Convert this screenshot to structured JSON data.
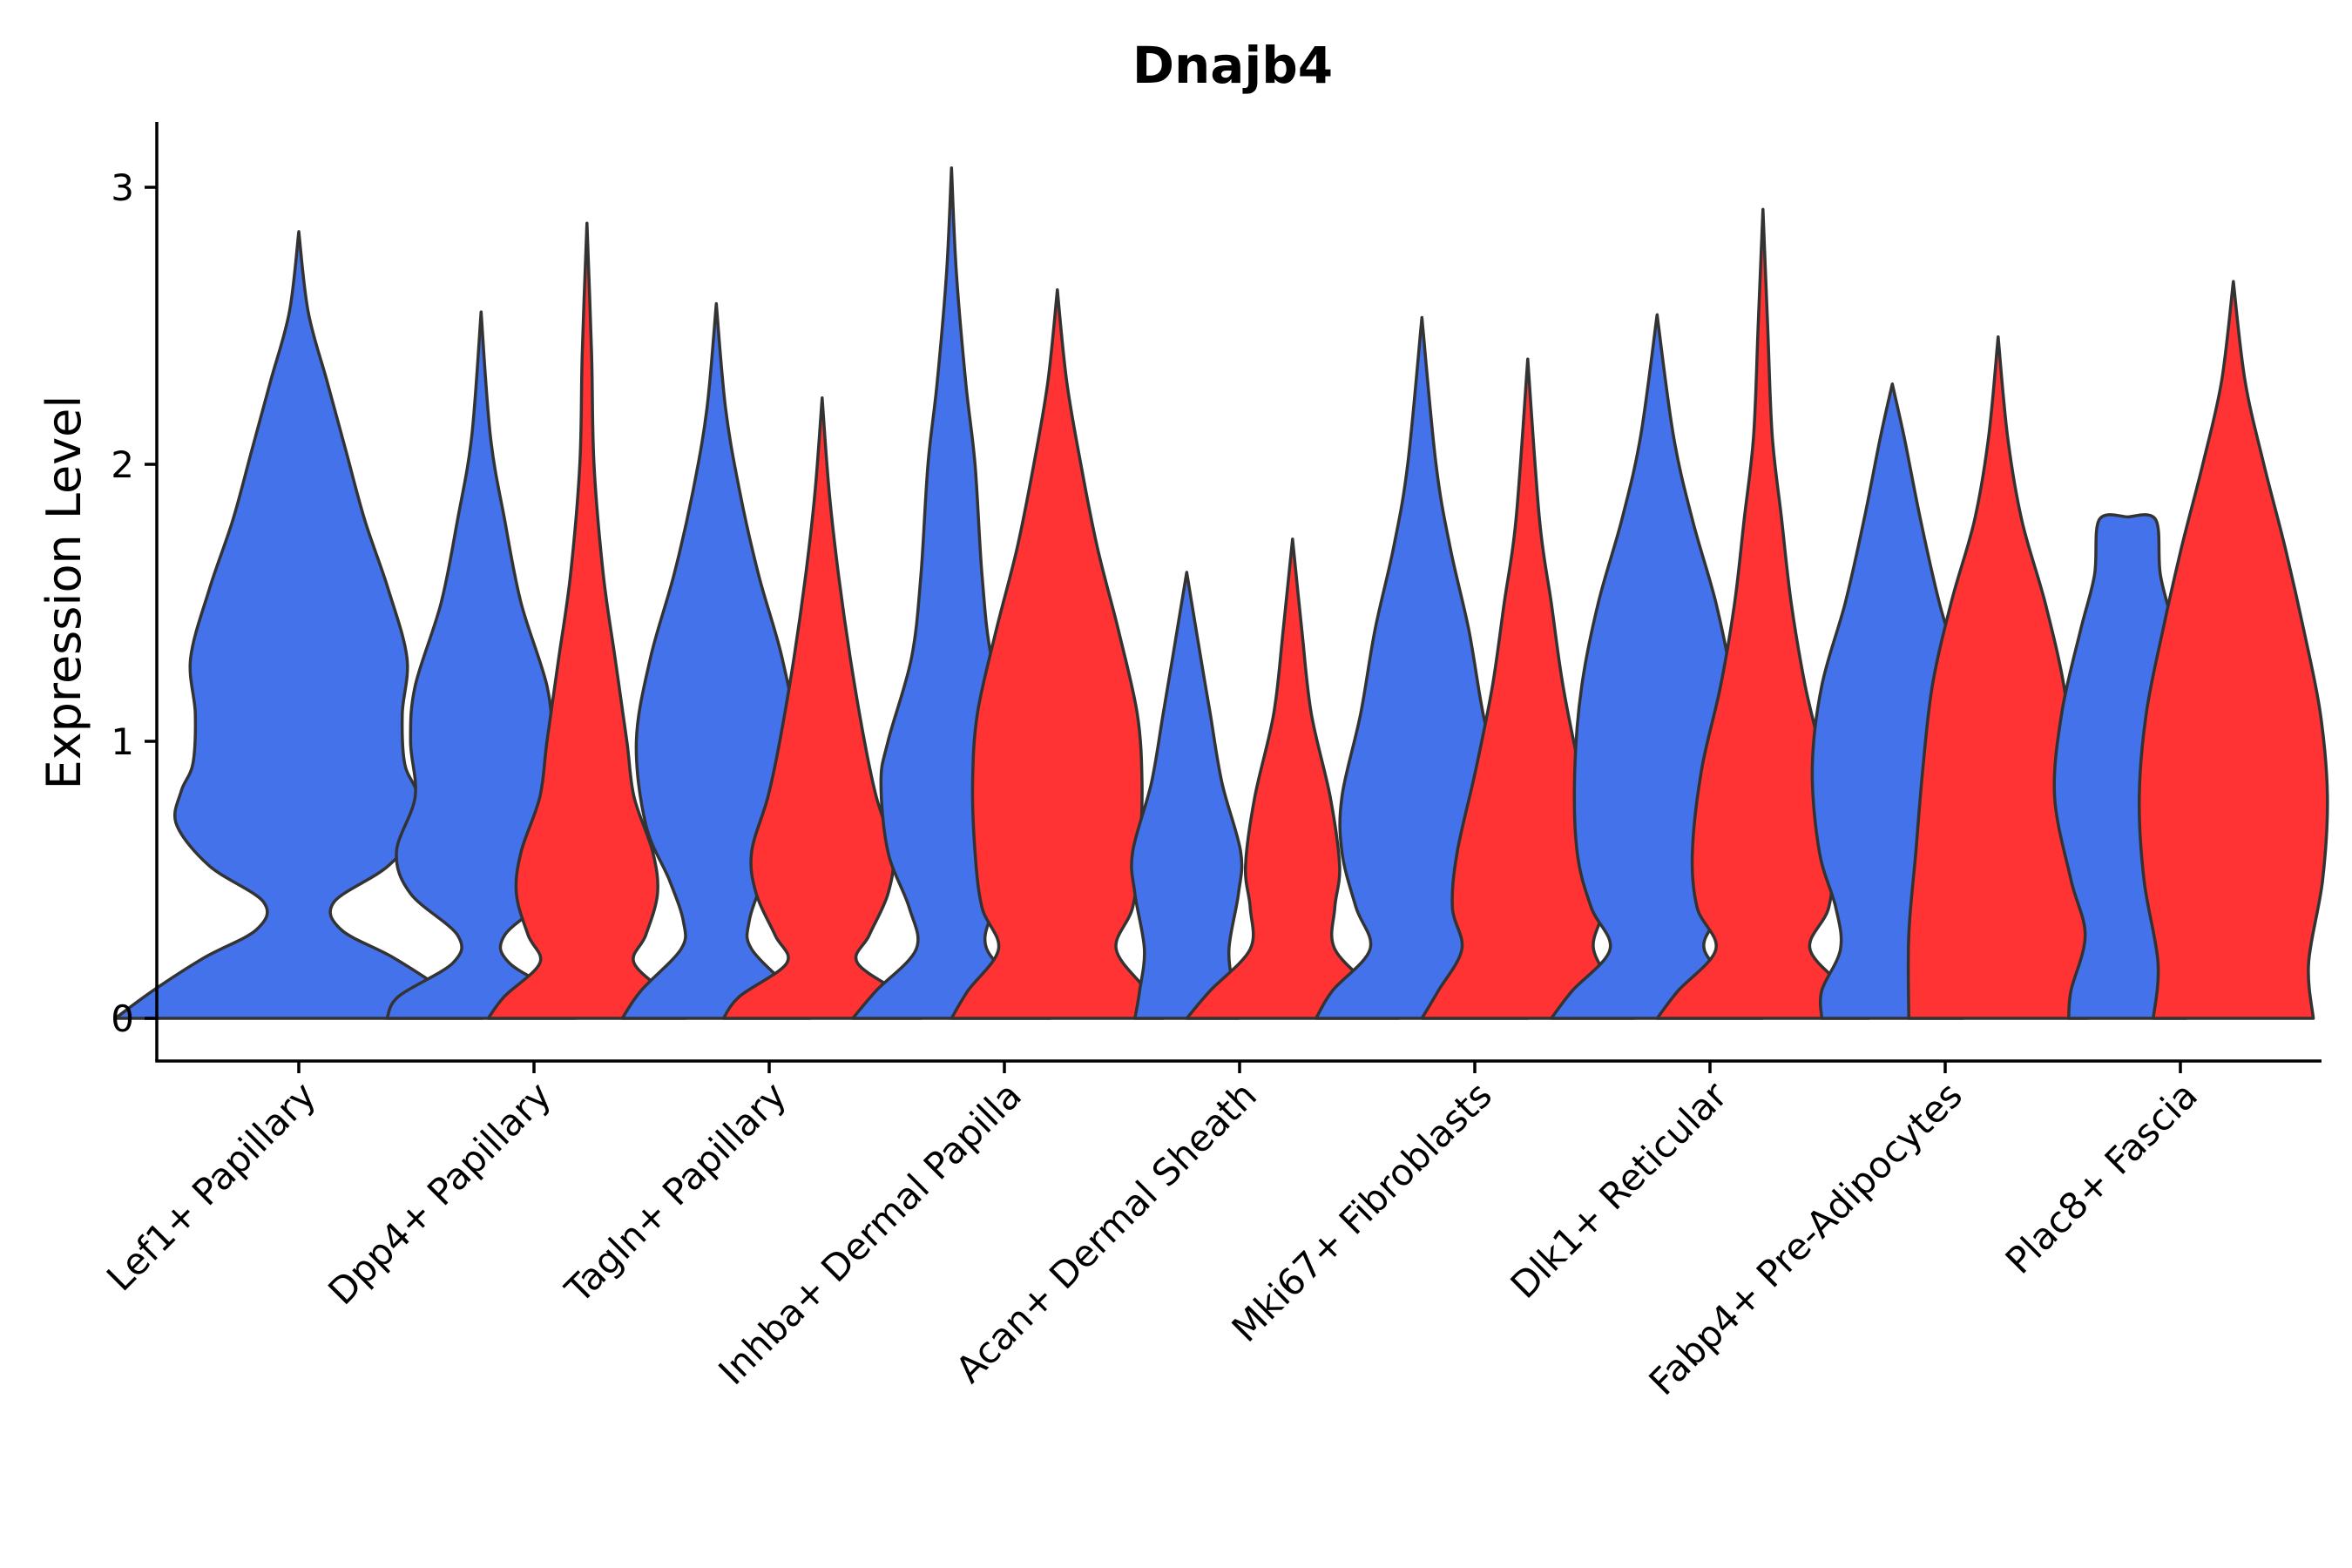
{
  "chart_data": {
    "type": "violin",
    "title": "Dnajb4",
    "xlabel": "",
    "ylabel": "Expression Level",
    "ylim": [
      -0.15,
      3.22
    ],
    "yticks": [
      0,
      1,
      2,
      3
    ],
    "colors": {
      "group1": "#4472EA",
      "group2": "#FF3333",
      "outline": "#333333"
    },
    "categories": [
      "Lef1+ Papillary",
      "Dpp4+ Papillary",
      "Tagln+ Papillary",
      "Inhba+ Dermal Papilla",
      "Acan+ Dermal Sheath",
      "Mki67+ Fibroblasts",
      "Dlk1+ Reticular",
      "Fabp4+ Pre-Adipocytes",
      "Plac8+ Fascia"
    ],
    "violins": [
      {
        "category": 0,
        "group": "group1",
        "offset": 0.0,
        "max": 2.84,
        "profile": [
          [
            0,
            0.78
          ],
          [
            0.1,
            0.62
          ],
          [
            0.22,
            0.4
          ],
          [
            0.32,
            0.18
          ],
          [
            0.42,
            0.15
          ],
          [
            0.55,
            0.38
          ],
          [
            0.7,
            0.52
          ],
          [
            0.82,
            0.5
          ],
          [
            0.92,
            0.45
          ],
          [
            1.1,
            0.44
          ],
          [
            1.3,
            0.46
          ],
          [
            1.55,
            0.38
          ],
          [
            1.8,
            0.28
          ],
          [
            2.05,
            0.2
          ],
          [
            2.3,
            0.12
          ],
          [
            2.55,
            0.04
          ],
          [
            2.84,
            0.0
          ]
        ]
      },
      {
        "category": 1,
        "group": "group1",
        "offset": -0.225,
        "max": 2.55,
        "profile": [
          [
            0,
            0.4
          ],
          [
            0.08,
            0.35
          ],
          [
            0.2,
            0.12
          ],
          [
            0.3,
            0.1
          ],
          [
            0.45,
            0.3
          ],
          [
            0.6,
            0.36
          ],
          [
            0.8,
            0.28
          ],
          [
            1.0,
            0.3
          ],
          [
            1.2,
            0.28
          ],
          [
            1.5,
            0.17
          ],
          [
            1.8,
            0.1
          ],
          [
            2.1,
            0.04
          ],
          [
            2.55,
            0.0
          ]
        ]
      },
      {
        "category": 1,
        "group": "group2",
        "offset": 0.225,
        "max": 2.87,
        "profile": [
          [
            0,
            0.42
          ],
          [
            0.08,
            0.35
          ],
          [
            0.2,
            0.2
          ],
          [
            0.3,
            0.25
          ],
          [
            0.45,
            0.3
          ],
          [
            0.6,
            0.28
          ],
          [
            0.8,
            0.2
          ],
          [
            1.0,
            0.17
          ],
          [
            1.3,
            0.12
          ],
          [
            1.6,
            0.07
          ],
          [
            2.0,
            0.03
          ],
          [
            2.4,
            0.02
          ],
          [
            2.87,
            0.0
          ]
        ]
      },
      {
        "category": 2,
        "group": "group1",
        "offset": -0.225,
        "max": 2.58,
        "profile": [
          [
            0,
            0.4
          ],
          [
            0.1,
            0.32
          ],
          [
            0.25,
            0.15
          ],
          [
            0.35,
            0.14
          ],
          [
            0.5,
            0.2
          ],
          [
            0.7,
            0.3
          ],
          [
            1.0,
            0.34
          ],
          [
            1.3,
            0.28
          ],
          [
            1.6,
            0.18
          ],
          [
            1.9,
            0.1
          ],
          [
            2.2,
            0.04
          ],
          [
            2.58,
            0.0
          ]
        ]
      },
      {
        "category": 2,
        "group": "group2",
        "offset": 0.225,
        "max": 2.24,
        "profile": [
          [
            0,
            0.42
          ],
          [
            0.08,
            0.35
          ],
          [
            0.2,
            0.15
          ],
          [
            0.3,
            0.2
          ],
          [
            0.45,
            0.28
          ],
          [
            0.6,
            0.3
          ],
          [
            0.8,
            0.23
          ],
          [
            1.0,
            0.18
          ],
          [
            1.3,
            0.12
          ],
          [
            1.6,
            0.07
          ],
          [
            1.9,
            0.03
          ],
          [
            2.24,
            0.0
          ]
        ]
      },
      {
        "category": 3,
        "group": "group1",
        "offset": -0.225,
        "max": 3.07,
        "profile": [
          [
            0,
            0.42
          ],
          [
            0.1,
            0.32
          ],
          [
            0.25,
            0.15
          ],
          [
            0.4,
            0.18
          ],
          [
            0.6,
            0.27
          ],
          [
            0.85,
            0.3
          ],
          [
            1.0,
            0.27
          ],
          [
            1.3,
            0.17
          ],
          [
            1.6,
            0.13
          ],
          [
            2.0,
            0.1
          ],
          [
            2.3,
            0.06
          ],
          [
            2.7,
            0.02
          ],
          [
            3.07,
            0.0
          ]
        ]
      },
      {
        "category": 3,
        "group": "group2",
        "offset": 0.225,
        "max": 2.63,
        "profile": [
          [
            0,
            0.45
          ],
          [
            0.1,
            0.38
          ],
          [
            0.25,
            0.25
          ],
          [
            0.4,
            0.32
          ],
          [
            0.6,
            0.35
          ],
          [
            0.85,
            0.36
          ],
          [
            1.1,
            0.34
          ],
          [
            1.4,
            0.26
          ],
          [
            1.7,
            0.17
          ],
          [
            2.0,
            0.1
          ],
          [
            2.3,
            0.04
          ],
          [
            2.63,
            0.0
          ]
        ]
      },
      {
        "category": 4,
        "group": "group1",
        "offset": -0.225,
        "max": 1.61,
        "profile": [
          [
            0,
            0.22
          ],
          [
            0.1,
            0.2
          ],
          [
            0.25,
            0.18
          ],
          [
            0.45,
            0.22
          ],
          [
            0.6,
            0.23
          ],
          [
            0.85,
            0.15
          ],
          [
            1.1,
            0.1
          ],
          [
            1.3,
            0.06
          ],
          [
            1.61,
            0.0
          ]
        ]
      },
      {
        "category": 4,
        "group": "group2",
        "offset": 0.225,
        "max": 1.73,
        "profile": [
          [
            0,
            0.45
          ],
          [
            0.1,
            0.35
          ],
          [
            0.25,
            0.18
          ],
          [
            0.4,
            0.18
          ],
          [
            0.55,
            0.2
          ],
          [
            0.8,
            0.16
          ],
          [
            1.1,
            0.08
          ],
          [
            1.4,
            0.04
          ],
          [
            1.73,
            0.0
          ]
        ]
      },
      {
        "category": 5,
        "group": "group1",
        "offset": -0.225,
        "max": 2.53,
        "profile": [
          [
            0,
            0.45
          ],
          [
            0.1,
            0.38
          ],
          [
            0.25,
            0.22
          ],
          [
            0.4,
            0.28
          ],
          [
            0.6,
            0.34
          ],
          [
            0.8,
            0.34
          ],
          [
            1.1,
            0.26
          ],
          [
            1.4,
            0.2
          ],
          [
            1.7,
            0.12
          ],
          [
            2.0,
            0.06
          ],
          [
            2.53,
            0.0
          ]
        ]
      },
      {
        "category": 5,
        "group": "group2",
        "offset": 0.225,
        "max": 2.38,
        "profile": [
          [
            0,
            0.45
          ],
          [
            0.1,
            0.38
          ],
          [
            0.25,
            0.28
          ],
          [
            0.4,
            0.32
          ],
          [
            0.6,
            0.3
          ],
          [
            0.9,
            0.22
          ],
          [
            1.2,
            0.15
          ],
          [
            1.5,
            0.1
          ],
          [
            1.8,
            0.05
          ],
          [
            2.38,
            0.0
          ]
        ]
      },
      {
        "category": 6,
        "group": "group1",
        "offset": -0.225,
        "max": 2.54,
        "profile": [
          [
            0,
            0.45
          ],
          [
            0.1,
            0.36
          ],
          [
            0.25,
            0.2
          ],
          [
            0.4,
            0.28
          ],
          [
            0.6,
            0.34
          ],
          [
            0.9,
            0.35
          ],
          [
            1.2,
            0.32
          ],
          [
            1.5,
            0.25
          ],
          [
            1.8,
            0.15
          ],
          [
            2.1,
            0.07
          ],
          [
            2.54,
            0.0
          ]
        ]
      },
      {
        "category": 6,
        "group": "group2",
        "offset": 0.225,
        "max": 2.92,
        "profile": [
          [
            0,
            0.45
          ],
          [
            0.1,
            0.36
          ],
          [
            0.25,
            0.2
          ],
          [
            0.4,
            0.28
          ],
          [
            0.6,
            0.3
          ],
          [
            0.9,
            0.26
          ],
          [
            1.2,
            0.18
          ],
          [
            1.5,
            0.12
          ],
          [
            1.8,
            0.08
          ],
          [
            2.1,
            0.04
          ],
          [
            2.5,
            0.02
          ],
          [
            2.92,
            0.0
          ]
        ]
      },
      {
        "category": 7,
        "group": "group1",
        "offset": -0.225,
        "max": 2.29,
        "profile": [
          [
            0,
            0.3
          ],
          [
            0.1,
            0.3
          ],
          [
            0.25,
            0.22
          ],
          [
            0.4,
            0.24
          ],
          [
            0.6,
            0.31
          ],
          [
            0.9,
            0.34
          ],
          [
            1.2,
            0.3
          ],
          [
            1.5,
            0.2
          ],
          [
            1.8,
            0.12
          ],
          [
            2.1,
            0.05
          ],
          [
            2.29,
            0.0
          ]
        ]
      },
      {
        "category": 7,
        "group": "group2",
        "offset": 0.225,
        "max": 2.46,
        "profile": [
          [
            0,
            0.38
          ],
          [
            0.3,
            0.38
          ],
          [
            0.6,
            0.35
          ],
          [
            0.9,
            0.32
          ],
          [
            1.2,
            0.28
          ],
          [
            1.5,
            0.2
          ],
          [
            1.8,
            0.1
          ],
          [
            2.1,
            0.04
          ],
          [
            2.46,
            0.0
          ]
        ]
      },
      {
        "category": 8,
        "group": "group1",
        "offset": -0.225,
        "max": 1.81,
        "profile": [
          [
            0,
            0.25
          ],
          [
            0.1,
            0.24
          ],
          [
            0.3,
            0.18
          ],
          [
            0.5,
            0.24
          ],
          [
            0.8,
            0.31
          ],
          [
            1.1,
            0.28
          ],
          [
            1.4,
            0.2
          ],
          [
            1.6,
            0.14
          ],
          [
            1.8,
            0.12
          ],
          [
            1.81,
            0.0
          ]
        ]
      },
      {
        "category": 8,
        "group": "group2",
        "offset": 0.225,
        "max": 2.66,
        "profile": [
          [
            0,
            0.34
          ],
          [
            0.2,
            0.32
          ],
          [
            0.5,
            0.38
          ],
          [
            0.8,
            0.4
          ],
          [
            1.1,
            0.37
          ],
          [
            1.4,
            0.3
          ],
          [
            1.7,
            0.22
          ],
          [
            2.0,
            0.13
          ],
          [
            2.3,
            0.05
          ],
          [
            2.66,
            0.0
          ]
        ]
      }
    ]
  }
}
